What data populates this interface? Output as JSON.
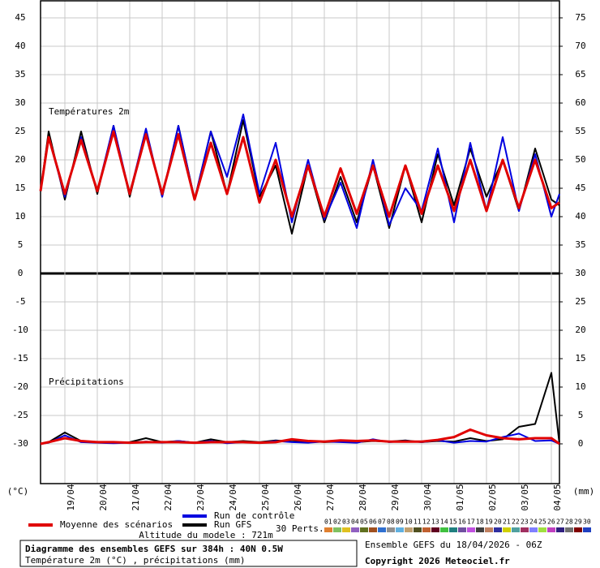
{
  "chart_data": {
    "type": "line",
    "title": "Diagramme des ensembles GEFS sur 384h : 40N 0.5W",
    "subtitle": "Température 2m (°C) , précipitations (mm)",
    "annotations": {
      "temperature": "Températures 2m",
      "precipitation": "Précipitations",
      "altitude": "Altitude du modele : 721m",
      "perts": "30 Perts.",
      "run": "Ensemble GEFS du 18/04/2026 - 06Z",
      "copyright": "Copyright 2026 Meteociel.fr"
    },
    "ylabel": "(°C)",
    "y2label": "(mm)",
    "grid": true,
    "x": [
      0,
      6,
      18,
      30,
      42,
      54,
      66,
      78,
      90,
      102,
      114,
      126,
      138,
      150,
      162,
      174,
      186,
      198,
      210,
      222,
      234,
      246,
      258,
      270,
      282,
      294,
      306,
      318,
      330,
      342,
      354,
      366,
      378,
      384
    ],
    "xlim": [
      0,
      384
    ],
    "xticks": [
      {
        "value": 18,
        "label": "19/04"
      },
      {
        "value": 42,
        "label": "20/04"
      },
      {
        "value": 66,
        "label": "21/04"
      },
      {
        "value": 90,
        "label": "22/04"
      },
      {
        "value": 114,
        "label": "23/04"
      },
      {
        "value": 138,
        "label": "24/04"
      },
      {
        "value": 162,
        "label": "25/04"
      },
      {
        "value": 186,
        "label": "26/04"
      },
      {
        "value": 210,
        "label": "27/04"
      },
      {
        "value": 234,
        "label": "28/04"
      },
      {
        "value": 258,
        "label": "29/04"
      },
      {
        "value": 282,
        "label": "30/04"
      },
      {
        "value": 306,
        "label": "01/05"
      },
      {
        "value": 330,
        "label": "02/05"
      },
      {
        "value": 354,
        "label": "03/05"
      },
      {
        "value": 378,
        "label": "04/05"
      }
    ],
    "ylim": [
      -37,
      48
    ],
    "yticks": [
      45,
      40,
      35,
      30,
      25,
      20,
      15,
      10,
      5,
      0,
      -5,
      -10,
      -15,
      -20,
      -25,
      -30
    ],
    "y2lim": [
      -7,
      78
    ],
    "y2ticks": [
      75,
      70,
      65,
      60,
      55,
      50,
      45,
      40,
      35,
      30,
      25,
      20,
      15,
      10,
      5,
      0
    ],
    "series": [
      {
        "name": "Moyenne des scénarios",
        "color": "#e00000",
        "axis": "y",
        "values": [
          14.5,
          24,
          14,
          23.5,
          14.5,
          25,
          14,
          24.5,
          14,
          24.5,
          13,
          23,
          14,
          24,
          12.5,
          20,
          10,
          19,
          10,
          18.5,
          10.5,
          19,
          10,
          19,
          10.5,
          19,
          11,
          20,
          11,
          20,
          11.5,
          20,
          11.5,
          12.5
        ]
      },
      {
        "name": "Run de contrôle",
        "color": "#0000e0",
        "axis": "y",
        "values": [
          14.5,
          24,
          13.5,
          24,
          14.5,
          26,
          14,
          25.5,
          13.5,
          26,
          13,
          25,
          17,
          28,
          14,
          23,
          9,
          20,
          9.5,
          16,
          8,
          20,
          8.5,
          15,
          11,
          22,
          9,
          23,
          11,
          24,
          11,
          21,
          10,
          14
        ]
      },
      {
        "name": "Run GFS",
        "color": "#000000",
        "axis": "y",
        "values": [
          14.5,
          25,
          13,
          25,
          14,
          26,
          13.5,
          25,
          13.5,
          26,
          13,
          25,
          14,
          27,
          13.5,
          19,
          7,
          19,
          9,
          17,
          9,
          19,
          8,
          19,
          9,
          21,
          12,
          22,
          13.5,
          20,
          11,
          22,
          13,
          12
        ]
      },
      {
        "name": "Moyenne des scénarios",
        "color": "#e00000",
        "axis": "y2",
        "values": [
          0,
          0.3,
          1,
          0.5,
          0.3,
          0.3,
          0.2,
          0.3,
          0.3,
          0.3,
          0.2,
          0.3,
          0.3,
          0.3,
          0.2,
          0.3,
          0.8,
          0.5,
          0.4,
          0.6,
          0.5,
          0.6,
          0.4,
          0.4,
          0.4,
          0.7,
          1.2,
          2.5,
          1.5,
          1,
          0.8,
          1,
          1,
          0
        ]
      },
      {
        "name": "Run de contrôle",
        "color": "#0000e0",
        "axis": "y2",
        "values": [
          0,
          0.2,
          1.5,
          0.3,
          0.2,
          0.1,
          0.2,
          0.4,
          0.2,
          0.5,
          0.2,
          0.5,
          0.1,
          0.3,
          0.2,
          0.5,
          0.3,
          0.2,
          0.4,
          0.3,
          0.2,
          0.8,
          0.3,
          0.5,
          0.3,
          0.6,
          0.2,
          0.5,
          0.4,
          1.2,
          1.8,
          0.5,
          0.6,
          0
        ]
      },
      {
        "name": "Run GFS",
        "color": "#000000",
        "axis": "y2",
        "values": [
          0,
          0.3,
          2,
          0.5,
          0.3,
          0.2,
          0.3,
          1,
          0.3,
          0.5,
          0.2,
          0.8,
          0.3,
          0.5,
          0.3,
          0.6,
          0.4,
          0.5,
          0.3,
          0.4,
          0.3,
          0.5,
          0.4,
          0.6,
          0.3,
          0.5,
          0.4,
          1,
          0.5,
          0.8,
          3,
          3.5,
          12.5,
          0
        ]
      }
    ],
    "perturbations": [
      {
        "name": "01",
        "color": "#e08030"
      },
      {
        "name": "02",
        "color": "#80c060"
      },
      {
        "name": "03",
        "color": "#e0c020"
      },
      {
        "name": "04",
        "color": "#9060c0"
      },
      {
        "name": "05",
        "color": "#607020"
      },
      {
        "name": "06",
        "color": "#a05020"
      },
      {
        "name": "07",
        "color": "#3070d0"
      },
      {
        "name": "08",
        "color": "#909090"
      },
      {
        "name": "09",
        "color": "#60b0e0"
      },
      {
        "name": "10",
        "color": "#c0a070"
      },
      {
        "name": "11",
        "color": "#505020"
      },
      {
        "name": "12",
        "color": "#c06030"
      },
      {
        "name": "13",
        "color": "#600020"
      },
      {
        "name": "14",
        "color": "#40c040"
      },
      {
        "name": "15",
        "color": "#208080"
      },
      {
        "name": "16",
        "color": "#7050a0"
      },
      {
        "name": "17",
        "color": "#c050e0"
      },
      {
        "name": "18",
        "color": "#404040"
      },
      {
        "name": "19",
        "color": "#c08060"
      },
      {
        "name": "20",
        "color": "#3030a0"
      },
      {
        "name": "21",
        "color": "#d0d000"
      },
      {
        "name": "22",
        "color": "#50a0a0"
      },
      {
        "name": "23",
        "color": "#a03060"
      },
      {
        "name": "24",
        "color": "#8080ff"
      },
      {
        "name": "25",
        "color": "#a0e040"
      },
      {
        "name": "26",
        "color": "#c040c0"
      },
      {
        "name": "27",
        "color": "#302080"
      },
      {
        "name": "28",
        "color": "#707070"
      },
      {
        "name": "29",
        "color": "#800000"
      },
      {
        "name": "30",
        "color": "#2040c0"
      }
    ]
  }
}
